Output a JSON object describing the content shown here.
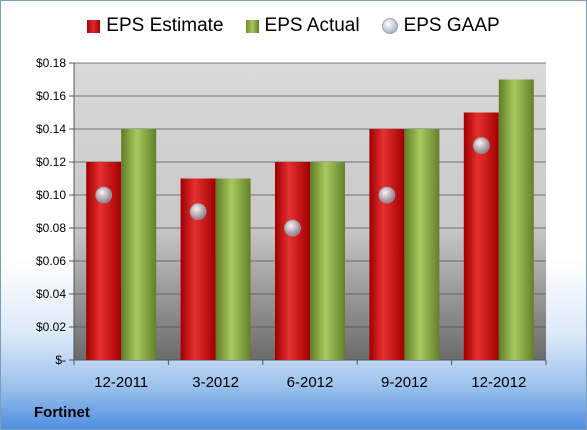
{
  "company": "Fortinet",
  "chart_data": {
    "type": "bar",
    "categories": [
      "12-2011",
      "3-2012",
      "6-2012",
      "9-2012",
      "12-2012"
    ],
    "series": [
      {
        "name": "EPS Estimate",
        "type": "bar",
        "color": "#d42020",
        "values": [
          0.12,
          0.11,
          0.12,
          0.14,
          0.15
        ]
      },
      {
        "name": "EPS Actual",
        "type": "bar",
        "color": "#8db04a",
        "values": [
          0.14,
          0.11,
          0.12,
          0.14,
          0.17
        ]
      },
      {
        "name": "EPS GAAP",
        "type": "scatter",
        "color": "#b8c2ce",
        "values": [
          0.1,
          0.09,
          0.08,
          0.1,
          0.13
        ]
      }
    ],
    "ylim": [
      0,
      0.18
    ],
    "yticks": [
      0,
      0.02,
      0.04,
      0.06,
      0.08,
      0.1,
      0.12,
      0.14,
      0.16,
      0.18
    ],
    "ytick_labels": [
      "$-",
      "$0.02",
      "$0.04",
      "$0.06",
      "$0.08",
      "$0.10",
      "$0.12",
      "$0.14",
      "$0.16",
      "$0.18"
    ],
    "grid": true,
    "legend_position": "top"
  }
}
